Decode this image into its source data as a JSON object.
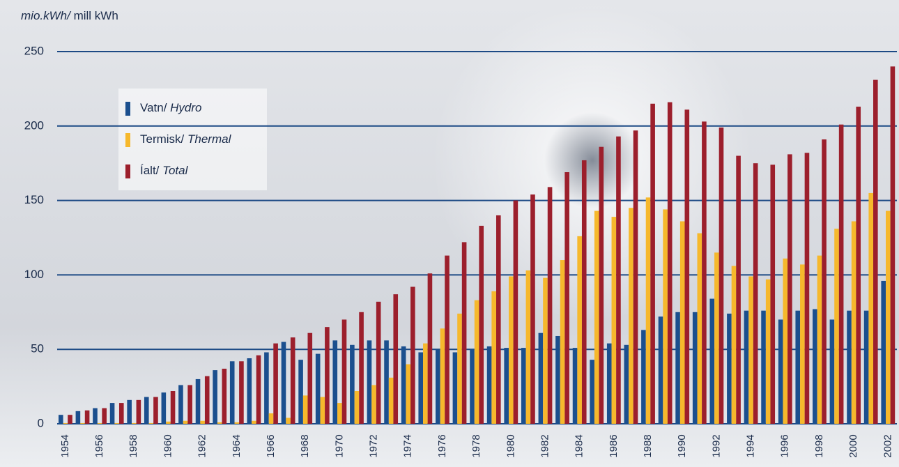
{
  "chart_data": {
    "type": "bar",
    "y_label": {
      "italic": "mio.kWh/",
      "plain": "mill kWh"
    },
    "categories": [
      "1954",
      null,
      "1956",
      null,
      "1958",
      null,
      "1960",
      null,
      "1962",
      null,
      "1964",
      null,
      "1966",
      null,
      "1968",
      null,
      "1970",
      null,
      "1972",
      null,
      "1974",
      null,
      "1976",
      null,
      "1978",
      null,
      "1980",
      null,
      "1982",
      null,
      "1984",
      null,
      "1986",
      null,
      "1988",
      null,
      "1990",
      null,
      "1992",
      null,
      "1994",
      null,
      "1996",
      null,
      "1998",
      null,
      "2000",
      null,
      "2002"
    ],
    "series": [
      {
        "name": "Vatn/ Hydro",
        "color": "#1b4f8e",
        "values": [
          6,
          8.5,
          10.5,
          14,
          16,
          18,
          21,
          26,
          30,
          36,
          42,
          44,
          48,
          55,
          43,
          47,
          56,
          53,
          56,
          56,
          52,
          48,
          50,
          48,
          50,
          52,
          51,
          51,
          61,
          59,
          51,
          43,
          54,
          53,
          63,
          72,
          75,
          75,
          84,
          74,
          76,
          76,
          70,
          76,
          77,
          70,
          76,
          76,
          96
        ]
      },
      {
        "name": "Termisk/ Thermal",
        "color": "#f6b82c",
        "values": [
          0.5,
          0.5,
          0.5,
          0.5,
          0.5,
          0.5,
          1.5,
          2,
          2,
          1,
          1,
          2,
          7,
          4,
          19,
          18,
          14,
          22,
          26,
          31,
          40,
          54,
          64,
          74,
          83,
          89,
          99,
          103,
          98,
          110,
          126,
          143,
          139,
          145,
          152,
          144,
          136,
          128,
          115,
          106,
          99,
          97,
          111,
          107,
          113,
          131,
          136,
          155,
          143
        ]
      },
      {
        "name": "Íalt/ Total",
        "color": "#9c1f2c",
        "values": [
          6,
          9,
          10.5,
          14,
          16,
          18,
          22,
          26,
          32,
          37,
          42,
          46,
          54,
          58,
          61,
          65,
          70,
          75,
          82,
          87,
          92,
          101,
          113,
          122,
          133,
          140,
          150,
          154,
          159,
          169,
          177,
          186,
          193,
          197,
          215,
          216,
          211,
          203,
          199,
          180,
          175,
          174,
          181,
          182,
          191,
          201,
          213,
          231,
          240
        ]
      }
    ],
    "ylim": [
      0,
      250
    ],
    "yticks": [
      0,
      50,
      100,
      150,
      200,
      250
    ],
    "grid": true
  }
}
